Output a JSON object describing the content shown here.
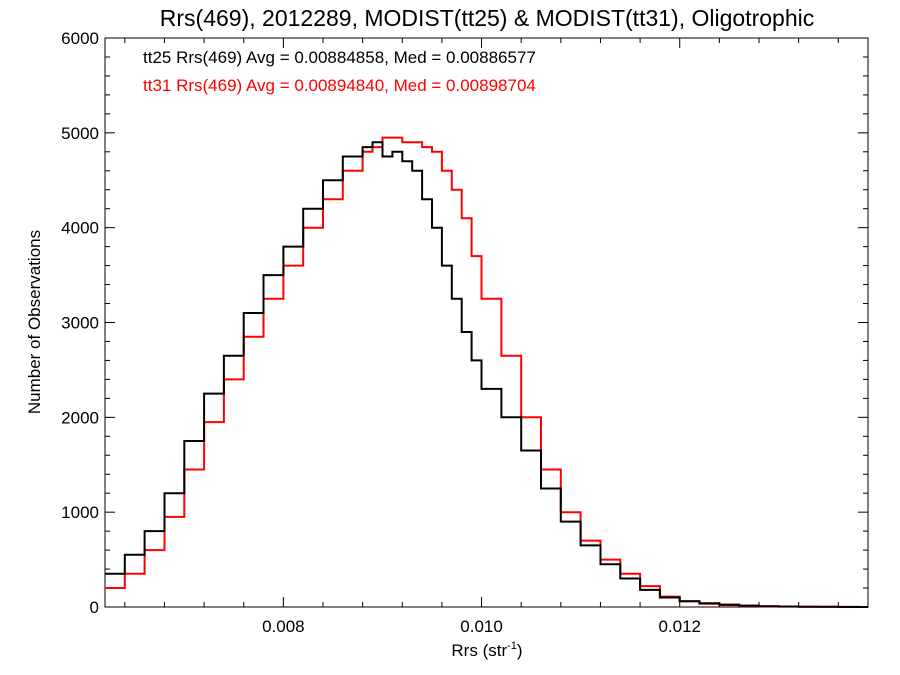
{
  "chart_data": {
    "type": "line",
    "title": "Rrs(469), 2012289, MODIST(tt25) & MODIST(tt31), Oligotrophic",
    "xlabel_main": "Rrs (str",
    "xlabel_sup": "-1",
    "xlabel_close": ")",
    "ylabel": "Number of Observations",
    "xlim": [
      0.0062,
      0.0139
    ],
    "ylim": [
      0,
      6000
    ],
    "x_ticks": [
      0.008,
      0.01,
      0.012
    ],
    "x_tick_labels": [
      "0.008",
      "0.010",
      "0.012"
    ],
    "y_ticks": [
      0,
      1000,
      2000,
      3000,
      4000,
      5000,
      6000
    ],
    "y_tick_labels": [
      "0",
      "1000",
      "2000",
      "3000",
      "4000",
      "5000",
      "6000"
    ],
    "line_style": "step",
    "annotations": [
      {
        "text": "tt25 Rrs(469) Avg = 0.00884858, Med = 0.00886577",
        "color": "#000000"
      },
      {
        "text": "tt31 Rrs(469) Avg = 0.00894840, Med = 0.00898704",
        "color": "#ff0000"
      }
    ],
    "series": [
      {
        "color": "#000000",
        "x": [
          0.0062,
          0.0064,
          0.0066,
          0.0068,
          0.007,
          0.0072,
          0.0074,
          0.0076,
          0.0078,
          0.008,
          0.0082,
          0.0084,
          0.0086,
          0.0088,
          0.0089,
          0.009,
          0.0091,
          0.0092,
          0.0093,
          0.0094,
          0.0095,
          0.0096,
          0.0097,
          0.0098,
          0.0099,
          0.01,
          0.0102,
          0.0104,
          0.0106,
          0.0108,
          0.011,
          0.0112,
          0.0114,
          0.0116,
          0.0118,
          0.012,
          0.0122,
          0.0124,
          0.0126,
          0.0128,
          0.013,
          0.0132,
          0.0134,
          0.0136,
          0.0138,
          0.0139
        ],
        "y": [
          350,
          550,
          800,
          1200,
          1750,
          2250,
          2650,
          3100,
          3500,
          3800,
          4200,
          4500,
          4750,
          4850,
          4900,
          4750,
          4800,
          4700,
          4600,
          4300,
          4000,
          3600,
          3250,
          2900,
          2600,
          2300,
          2000,
          1650,
          1250,
          900,
          650,
          450,
          300,
          180,
          100,
          60,
          40,
          25,
          15,
          8,
          5,
          3,
          2,
          1,
          0,
          0
        ]
      },
      {
        "color": "#ff0000",
        "x": [
          0.0062,
          0.0064,
          0.0066,
          0.0068,
          0.007,
          0.0072,
          0.0074,
          0.0076,
          0.0078,
          0.008,
          0.0082,
          0.0084,
          0.0086,
          0.0088,
          0.0089,
          0.009,
          0.0091,
          0.0092,
          0.0093,
          0.0094,
          0.0095,
          0.0096,
          0.0097,
          0.0098,
          0.0099,
          0.01,
          0.0102,
          0.0104,
          0.0106,
          0.0108,
          0.011,
          0.0112,
          0.0114,
          0.0116,
          0.0118,
          0.012,
          0.0122,
          0.0124,
          0.0126,
          0.0128,
          0.013,
          0.0132,
          0.0134,
          0.0136,
          0.0138,
          0.0139
        ],
        "y": [
          200,
          350,
          600,
          950,
          1450,
          1950,
          2400,
          2850,
          3250,
          3600,
          4000,
          4300,
          4600,
          4800,
          4850,
          4950,
          4950,
          4900,
          4900,
          4850,
          4800,
          4600,
          4400,
          4100,
          3700,
          3250,
          2650,
          2000,
          1450,
          1000,
          700,
          500,
          350,
          220,
          110,
          60,
          35,
          20,
          12,
          6,
          4,
          2,
          1,
          0,
          0,
          0
        ]
      }
    ]
  }
}
